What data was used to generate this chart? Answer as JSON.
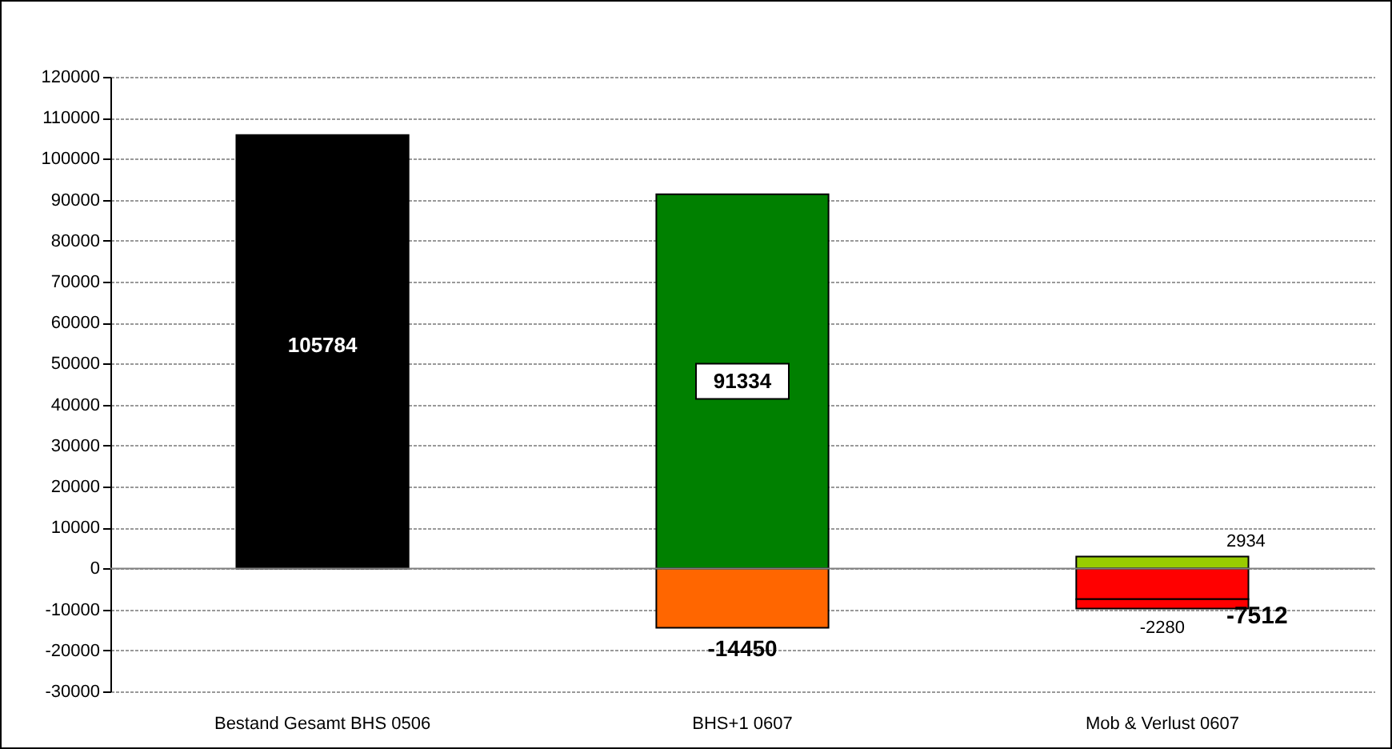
{
  "chart_data": {
    "type": "bar",
    "stacked": true,
    "categories": [
      "Bestand Gesamt BHS 0506",
      "BHS+1 0607",
      "Mob & Verlust 0607"
    ],
    "series": [
      {
        "color": "#000000",
        "values": [
          105784,
          null,
          null
        ]
      },
      {
        "color": "#008000",
        "values": [
          null,
          91334,
          null
        ]
      },
      {
        "color": "#ff6600",
        "values": [
          null,
          -14450,
          null
        ]
      },
      {
        "color": "#99cc00",
        "values": [
          null,
          null,
          2934
        ]
      },
      {
        "color": "#ff0000",
        "values": [
          null,
          null,
          -7512
        ]
      },
      {
        "color": "#ff0000",
        "values": [
          null,
          null,
          -2280
        ]
      }
    ],
    "data_labels": true,
    "ylim": [
      -30000,
      120000
    ],
    "yticks": [
      -30000,
      -20000,
      -10000,
      0,
      10000,
      20000,
      30000,
      40000,
      50000,
      60000,
      70000,
      80000,
      90000,
      100000,
      110000,
      120000
    ],
    "grid": "y",
    "ref_lines": [
      {
        "axis": "y",
        "value": 0,
        "color": "#808080"
      }
    ]
  }
}
